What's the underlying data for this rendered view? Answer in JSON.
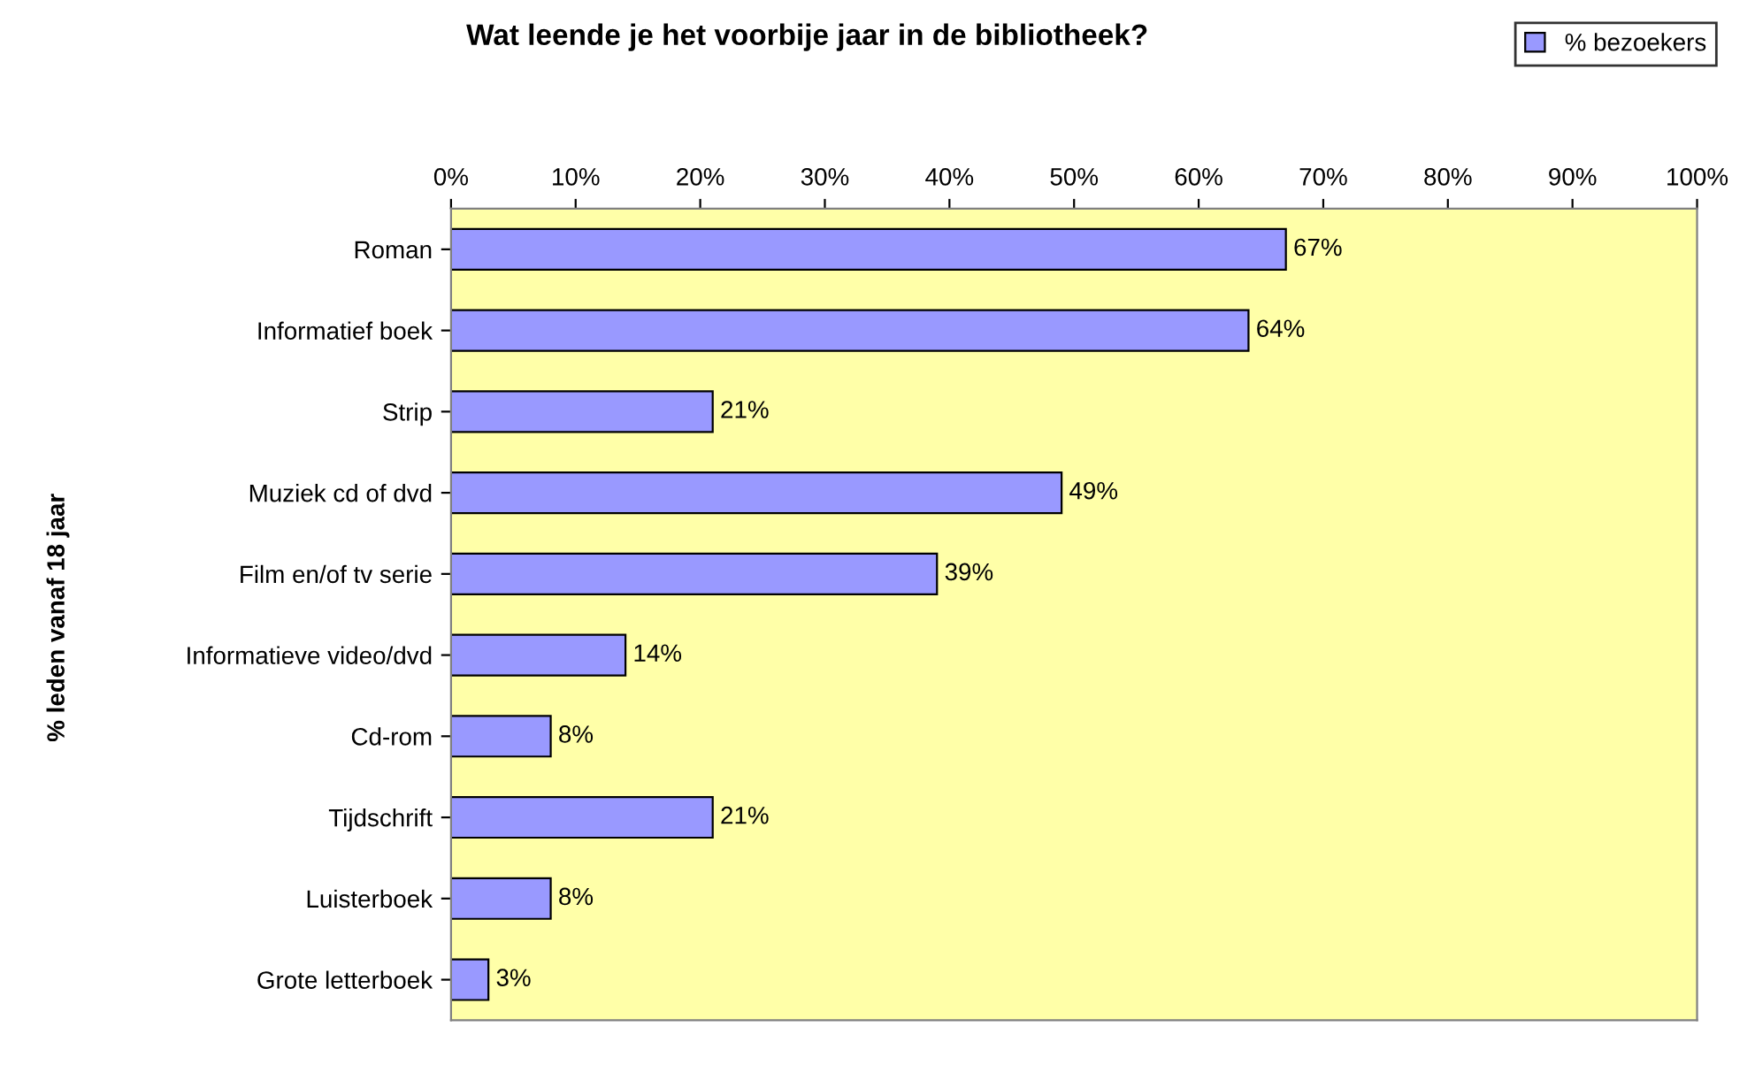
{
  "chart_data": {
    "type": "bar",
    "orientation": "horizontal",
    "title": "Wat leende je het voorbije jaar in de bibliotheek?",
    "ylabel": "% leden vanaf 18 jaar",
    "categories": [
      "Roman",
      "Informatief boek",
      "Strip",
      "Muziek cd of dvd",
      "Film en/of tv serie",
      "Informatieve video/dvd",
      "Cd-rom",
      "Tijdschrift",
      "Luisterboek",
      "Grote letterboek"
    ],
    "series": [
      {
        "name": "% bezoekers",
        "color": "#9999ff",
        "values": [
          67,
          64,
          21,
          49,
          39,
          14,
          8,
          21,
          8,
          3
        ],
        "value_labels": [
          "67%",
          "64%",
          "21%",
          "49%",
          "39%",
          "14%",
          "8%",
          "21%",
          "8%",
          "3%"
        ]
      }
    ],
    "xlim": [
      0,
      100
    ],
    "xticks": [
      {
        "value": 0,
        "label": "0%"
      },
      {
        "value": 10,
        "label": "10%"
      },
      {
        "value": 20,
        "label": "20%"
      },
      {
        "value": 30,
        "label": "30%"
      },
      {
        "value": 40,
        "label": "40%"
      },
      {
        "value": 50,
        "label": "50%"
      },
      {
        "value": 60,
        "label": "60%"
      },
      {
        "value": 70,
        "label": "70%"
      },
      {
        "value": 80,
        "label": "80%"
      },
      {
        "value": 90,
        "label": "90%"
      },
      {
        "value": 100,
        "label": "100%"
      }
    ],
    "grid": false,
    "legend": "top right"
  }
}
